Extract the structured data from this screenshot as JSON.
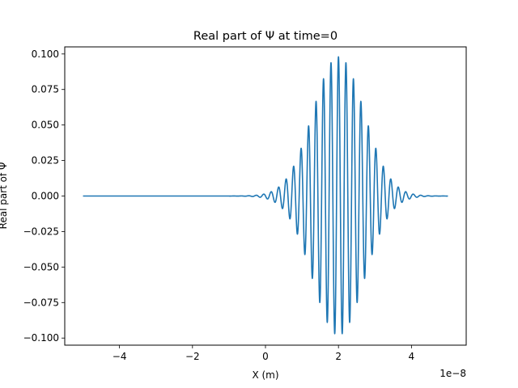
{
  "chart_data": {
    "type": "line",
    "title": "Real part of Ψ at time=0",
    "xlabel": "X (m)",
    "ylabel": "Real part of Ψ",
    "x_offset_label": "1e−8",
    "xlim": [
      -5.5e-08,
      5.5e-08
    ],
    "ylim": [
      -0.105,
      0.105
    ],
    "x_ticks": [
      -4e-08,
      -2e-08,
      0,
      2e-08,
      4e-08
    ],
    "x_tick_labels": [
      "−4",
      "−2",
      "0",
      "2",
      "4"
    ],
    "y_ticks": [
      -0.1,
      -0.075,
      -0.05,
      -0.025,
      0.0,
      0.025,
      0.05,
      0.075,
      0.1
    ],
    "y_tick_labels": [
      "−0.100",
      "−0.075",
      "−0.050",
      "−0.025",
      "0.000",
      "0.025",
      "0.050",
      "0.075",
      "0.100"
    ],
    "grid": false,
    "series": [
      {
        "color": "#1f77b4",
        "x_range": [
          -5e-08,
          5e-08
        ],
        "packet": {
          "form": "Gaussian wave packet, real part",
          "center": 2e-08,
          "amplitude": 0.098,
          "sigma": 7e-09,
          "wavelength": 2.05e-09
        }
      }
    ]
  }
}
